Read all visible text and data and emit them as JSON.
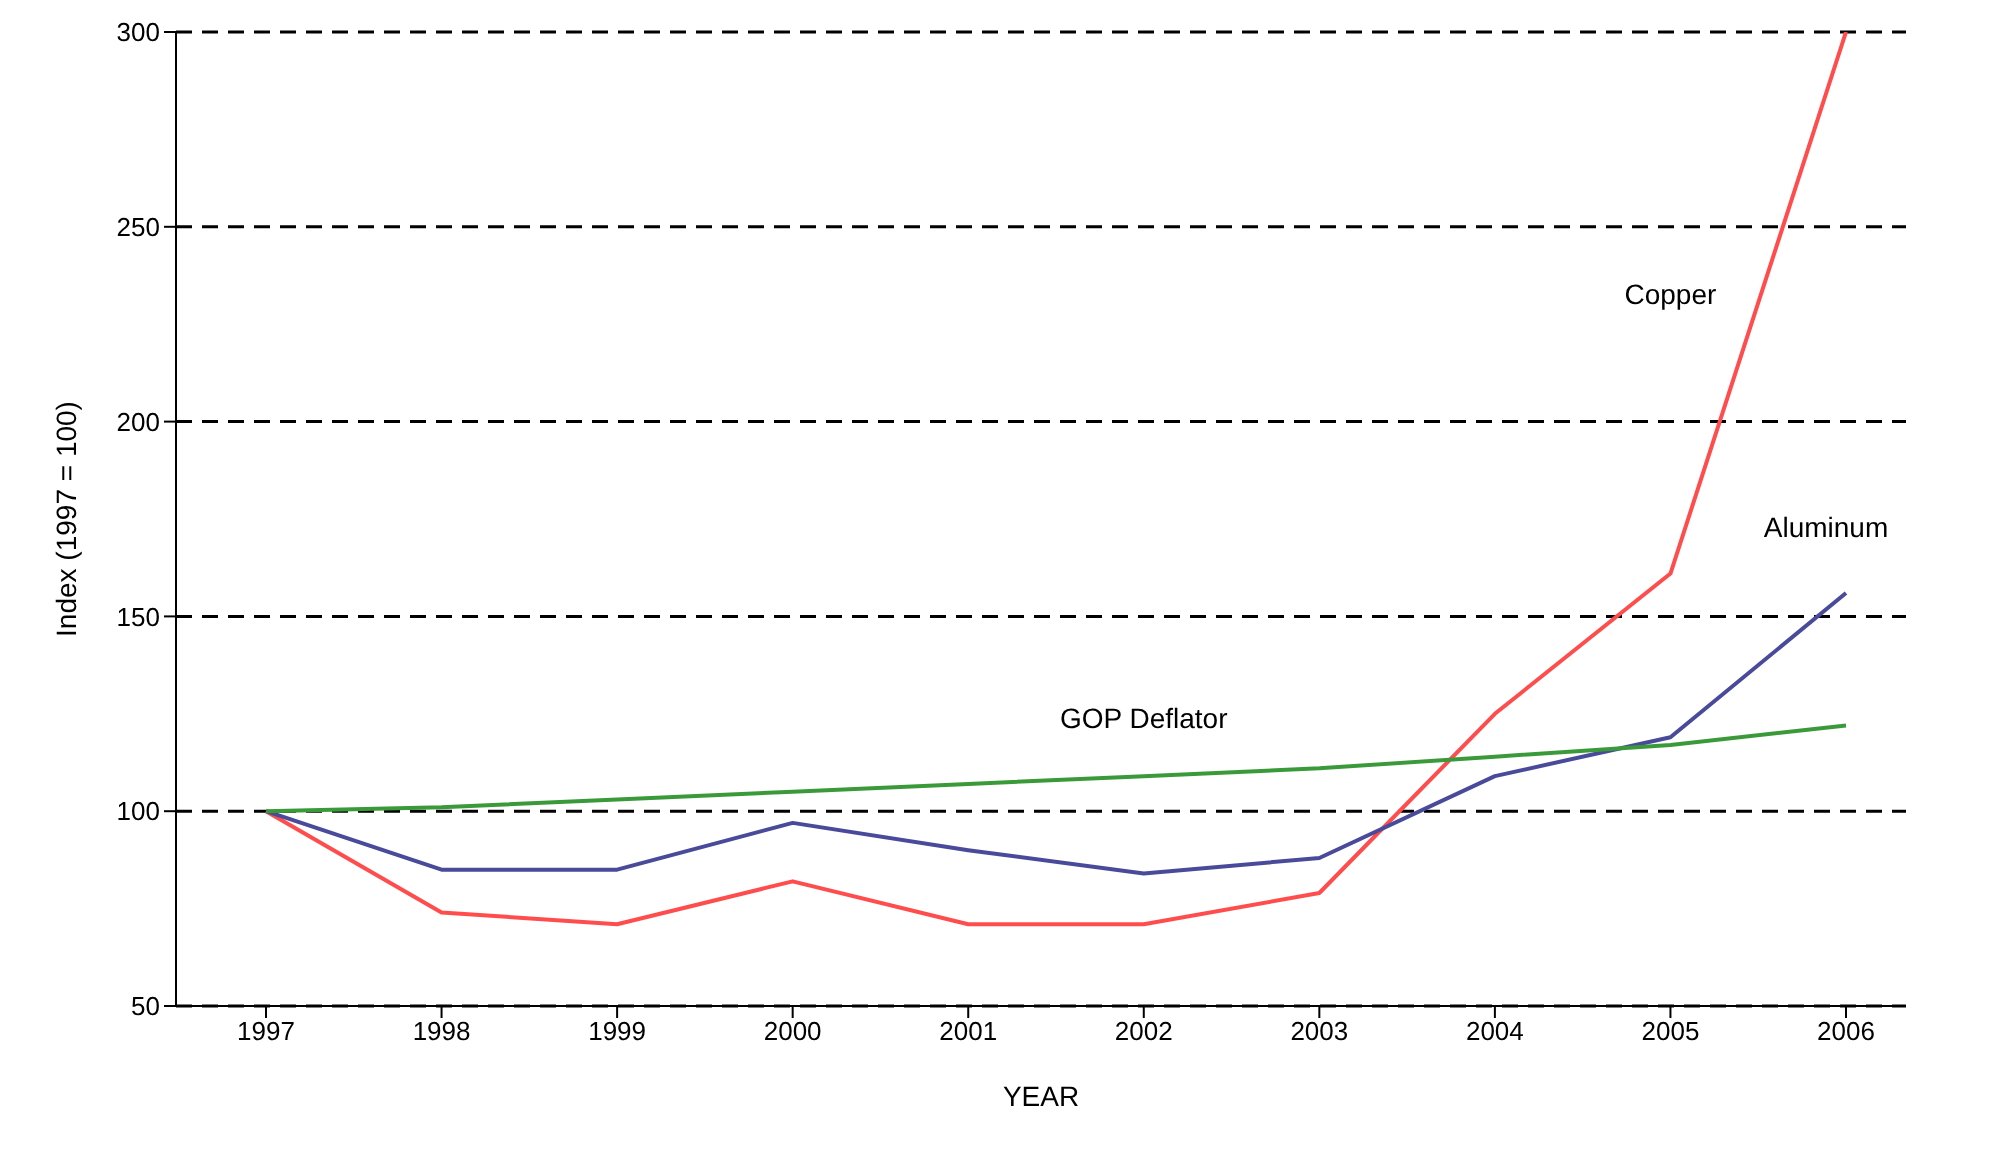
{
  "chart_data": {
    "type": "line",
    "xlabel": "YEAR",
    "ylabel": "Index (1997 = 100)",
    "categories": [
      "1997",
      "1998",
      "1999",
      "2000",
      "2001",
      "2002",
      "2003",
      "2004",
      "2005",
      "2006"
    ],
    "series": [
      {
        "name": "Copper",
        "color": "#ff4d4d",
        "values": [
          100,
          74,
          71,
          82,
          71,
          71,
          79,
          125,
          161,
          300
        ]
      },
      {
        "name": "Aluminum",
        "color": "#4a4a9a",
        "values": [
          100,
          85,
          85,
          97,
          90,
          84,
          88,
          109,
          119,
          156
        ]
      },
      {
        "name": "GOP Deflator",
        "color": "#3a9a3a",
        "values": [
          100,
          101,
          103,
          105,
          107,
          109,
          111,
          114,
          117,
          122
        ]
      }
    ],
    "ylim": [
      50,
      300
    ],
    "yticks": [
      50,
      100,
      150,
      200,
      250,
      300
    ],
    "grid": "y",
    "line_style": "solid",
    "marker": "none",
    "legend": false
  }
}
